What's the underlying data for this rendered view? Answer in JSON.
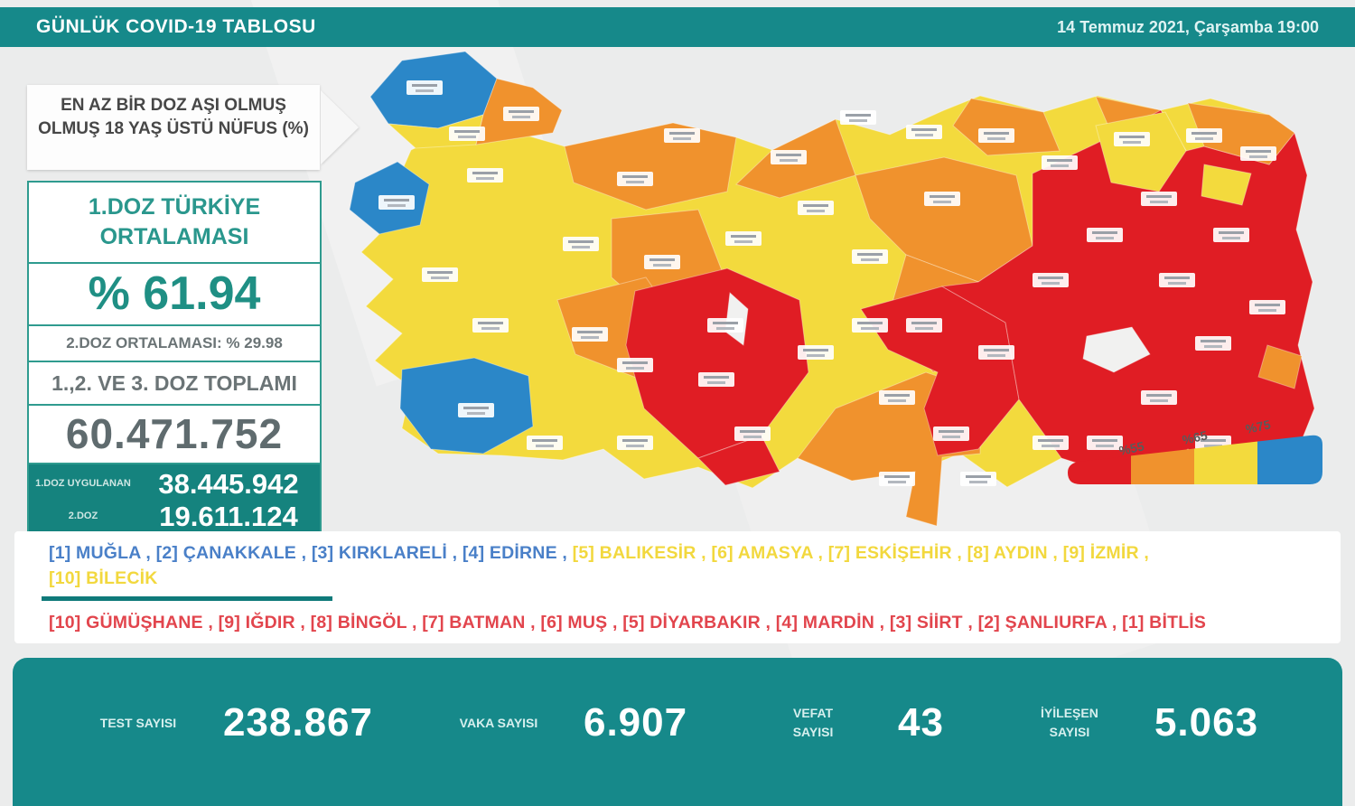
{
  "palette": {
    "teal": "#16898a",
    "teal_deep": "#15837e",
    "teal_border": "#2f9b8f",
    "red": "#e01d24",
    "orange": "#f0922d",
    "yellow": "#f3da3d",
    "blue": "#2b87c8"
  },
  "header": {
    "title": "GÜNLÜK COVID-19 TABLOSU",
    "datetime": "14 Temmuz 2021, Çarşamba 19:00"
  },
  "vaccine_panel": {
    "info_title": "EN AZ BİR DOZ AŞI OLMUŞ OLMUŞ 18 YAŞ ÜSTÜ NÜFUS (%)",
    "dose1_title": "1.DOZ TÜRKİYE ORTALAMASI",
    "dose1_avg": "% 61.94",
    "dose2_avg_line": "2.DOZ ORTALAMASI: % 29.98",
    "total_title": "1.,2. VE 3. DOZ TOPLAMI",
    "total_value": "60.471.752",
    "dose1_label": "1.DOZ UYGULANAN",
    "dose1_value": "38.445.942",
    "dose2_label": "2.DOZ",
    "dose2_value": "19.611.124"
  },
  "legend": {
    "labels": [
      "%55",
      "%65",
      "%75"
    ],
    "bins": [
      {
        "color": "#e01d24",
        "range": "< %55"
      },
      {
        "color": "#f0922d",
        "range": "%55 - %65"
      },
      {
        "color": "#f3da3d",
        "range": "%65 - %75"
      },
      {
        "color": "#2b87c8",
        "range": "> %75"
      }
    ]
  },
  "rankings": {
    "top_blue": "[1] MUĞLA , [2] ÇANAKKALE , [3] KIRKLARELİ , [4] EDİRNE , ",
    "top_yellow": "[5] BALIKESİR , [6] AMASYA , [7] ESKİŞEHİR , [8] AYDIN , [9] İZMİR ,",
    "top_yellow_2": "[10] BİLECİK",
    "bottom_red": "[10] GÜMÜŞHANE , [9] IĞDIR , [8] BİNGÖL , [7] BATMAN , [6] MUŞ , [5] DİYARBAKIR , [4] MARDİN , [3] SİİRT , [2] ŞANLIURFA , [1] BİTLİS"
  },
  "bottom_stats": [
    {
      "label": "TEST SAYISI",
      "value": "238.867"
    },
    {
      "label": "VAKA SAYISI",
      "value": "6.907"
    },
    {
      "label": "VEFAT SAYISI",
      "value": "43"
    },
    {
      "label": "İYİLEŞEN SAYISI",
      "value": "5.063"
    }
  ],
  "chart_data": {
    "type": "heatmap",
    "subtype": "choropleth-map-of-turkey",
    "title": "EN AZ BİR DOZ AŞI OLMUŞ 18 YAŞ ÜSTÜ NÜFUS (%)",
    "color_scale": [
      {
        "color": "red",
        "range": "< %55"
      },
      {
        "color": "orange",
        "range": "%55 - %65"
      },
      {
        "color": "yellow",
        "range": "%65 - %75"
      },
      {
        "color": "blue",
        "range": "> %75"
      }
    ],
    "legend_ticks": [
      "%55",
      "%65",
      "%75"
    ],
    "national_first_dose_pct": 61.94,
    "national_second_dose_pct": 29.98,
    "total_doses": 60471752,
    "first_doses_administered": 38445942,
    "second_doses_administered": 19611124,
    "highest_vaccination_provinces": [
      "MUĞLA",
      "ÇANAKKALE",
      "KIRKLARELİ",
      "EDİRNE",
      "BALIKESİR",
      "AMASYA",
      "ESKİŞEHİR",
      "AYDIN",
      "İZMİR",
      "BİLECİK"
    ],
    "lowest_vaccination_provinces": [
      "BİTLİS",
      "ŞANLIURFA",
      "SİİRT",
      "MARDİN",
      "DİYARBAKIR",
      "MUŞ",
      "BATMAN",
      "BİNGÖL",
      "IĞDIR",
      "GÜMÜŞHANE"
    ],
    "daily_stats": {
      "tests": 238867,
      "cases": 6907,
      "deaths": 43,
      "recovered": 5063
    }
  }
}
